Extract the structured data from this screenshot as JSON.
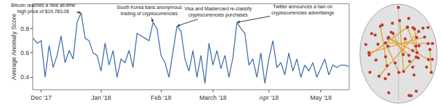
{
  "chart_data": {
    "type": "line",
    "y_label": "Average Anomaly Score",
    "categories": [
      null,
      null,
      "Dec '17",
      null,
      null,
      null,
      null,
      null,
      null,
      null,
      null,
      null,
      null,
      null,
      null,
      null,
      null,
      "Jan '18",
      null,
      null,
      null,
      null,
      null,
      null,
      null,
      null,
      null,
      null,
      null,
      null,
      null,
      null,
      "Feb '18",
      null,
      null,
      null,
      null,
      null,
      null,
      null,
      null,
      null,
      null,
      null,
      null,
      "March '18",
      null,
      null,
      null,
      null,
      null,
      null,
      null,
      null,
      null,
      null,
      null,
      null,
      null,
      "Apr '18",
      null,
      null,
      null,
      null,
      null,
      null,
      null,
      null,
      null,
      null,
      null,
      null,
      "May '18",
      null,
      null,
      null,
      null,
      null,
      null,
      null
    ],
    "values": [
      0.72,
      0.68,
      0.7,
      0.4,
      0.66,
      0.48,
      0.58,
      0.74,
      0.52,
      0.62,
      0.55,
      0.85,
      0.93,
      0.72,
      0.7,
      0.6,
      0.58,
      0.45,
      0.68,
      0.5,
      0.62,
      0.4,
      0.55,
      0.52,
      0.62,
      0.48,
      0.76,
      0.74,
      0.72,
      0.7,
      0.85,
      0.8,
      0.58,
      0.52,
      0.4,
      0.6,
      0.82,
      0.78,
      0.55,
      0.45,
      0.62,
      0.4,
      0.58,
      0.35,
      0.68,
      0.5,
      0.62,
      0.47,
      0.58,
      0.4,
      0.56,
      0.85,
      0.8,
      0.76,
      0.5,
      0.55,
      0.4,
      0.6,
      0.35,
      0.55,
      0.7,
      0.48,
      0.52,
      0.42,
      0.6,
      0.45,
      0.55,
      0.4,
      0.5,
      0.45,
      0.52,
      0.4,
      0.48,
      0.55,
      0.42,
      0.5,
      0.48,
      0.5,
      0.5,
      0.49
    ],
    "color": "#3d6ea8",
    "ylim": [
      0.3,
      1.0
    ],
    "yticks": [
      0.4,
      0.6,
      0.8
    ],
    "grid": false,
    "annotations": [
      {
        "x": 12,
        "text": [
          "Bitcoin reaches a new all-time",
          "high price of $19,783.06"
        ]
      },
      {
        "x": 30,
        "text": [
          "South Korea bans anonymous",
          "trading of cryptocurrencies"
        ]
      },
      {
        "x": 36,
        "text": [
          "Visa and Mastercard re-classify",
          "cryptocurrencies purchases"
        ]
      },
      {
        "x": 51,
        "text": [
          "Twitter announces a ban on",
          "cryptocurrencies advertisings"
        ]
      }
    ]
  }
}
